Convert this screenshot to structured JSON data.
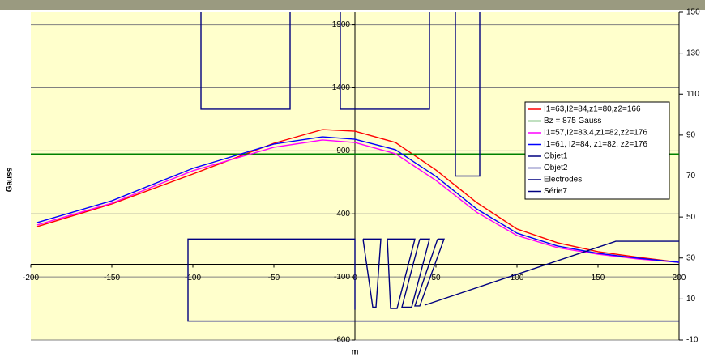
{
  "chart_data": {
    "type": "line",
    "x_label": "m",
    "y_label": "Gauss",
    "xlim": [
      -200,
      200
    ],
    "xticks": [
      -200,
      -150,
      -100,
      -50,
      0,
      50,
      100,
      150,
      200
    ],
    "ylim": [
      -600,
      2000
    ],
    "yticks": [
      -600,
      -100,
      400,
      900,
      1400,
      1900
    ],
    "y2lim": [
      -10,
      150
    ],
    "y2ticks": [
      -10,
      10,
      30,
      50,
      70,
      90,
      110,
      130,
      150
    ],
    "grid": true,
    "legend": "right",
    "series": [
      {
        "name": "I1=63,I2=84,z1=80,z2=166",
        "color": "#ff0000",
        "x": [
          -196,
          -150,
          -100,
          -50,
          -20,
          0,
          25,
          50,
          75,
          100,
          125,
          150,
          175,
          200
        ],
        "values": [
          299,
          479,
          716,
          960,
          1069,
          1056,
          966,
          748,
          491,
          280,
          171,
          100,
          55,
          16
        ]
      },
      {
        "name": "Bz = 875 Gauss",
        "color": "#008000",
        "x": [
          -200,
          200
        ],
        "values": [
          875,
          875
        ]
      },
      {
        "name": "I1=57,I2=83.4,z1=82,z2=176",
        "color": "#ff00ff",
        "x": [
          -196,
          -150,
          -100,
          -50,
          -20,
          0,
          25,
          50,
          75,
          100,
          125,
          150,
          175,
          200
        ],
        "values": [
          312,
          485,
          742,
          928,
          986,
          966,
          877,
          665,
          414,
          228,
          132,
          80,
          42,
          16
        ]
      },
      {
        "name": "I1=61, I2=84, z1=82, z2=176",
        "color": "#0000ff",
        "x": [
          -196,
          -150,
          -100,
          -50,
          -20,
          0,
          25,
          50,
          75,
          100,
          125,
          150,
          175,
          200
        ],
        "values": [
          331,
          504,
          761,
          954,
          1011,
          992,
          909,
          697,
          440,
          247,
          145,
          87,
          48,
          16
        ]
      },
      {
        "name": "Objet1",
        "color": "#000080",
        "x": [
          200,
          -103,
          -103,
          0,
          0
        ],
        "values": [
          -450,
          -450,
          200,
          200,
          -360
        ]
      },
      {
        "name": "Objet2",
        "color": "#000080",
        "x": [
          -95,
          -95,
          -40,
          -40,
          null,
          -9,
          -9,
          46,
          46,
          null,
          62,
          62,
          77,
          77
        ],
        "values": [
          2000,
          1230,
          1230,
          2000,
          null,
          2000,
          1230,
          1230,
          2000,
          null,
          2000,
          700,
          700,
          2000
        ]
      },
      {
        "name": "Electrodes",
        "color": "#000080",
        "x": [
          5,
          16,
          13,
          11,
          5,
          null,
          20,
          37,
          26,
          22,
          20,
          null,
          40,
          46,
          35,
          29,
          40,
          null,
          51,
          55,
          40,
          37,
          51
        ],
        "values": [
          200,
          200,
          -340,
          -340,
          200,
          null,
          200,
          200,
          -350,
          -350,
          200,
          null,
          200,
          200,
          -340,
          -340,
          200,
          null,
          200,
          200,
          -330,
          -330,
          200
        ]
      },
      {
        "name": "Série7",
        "color": "#000080",
        "x": [
          43,
          161,
          200
        ],
        "values": [
          -324,
          183,
          183
        ]
      }
    ]
  }
}
